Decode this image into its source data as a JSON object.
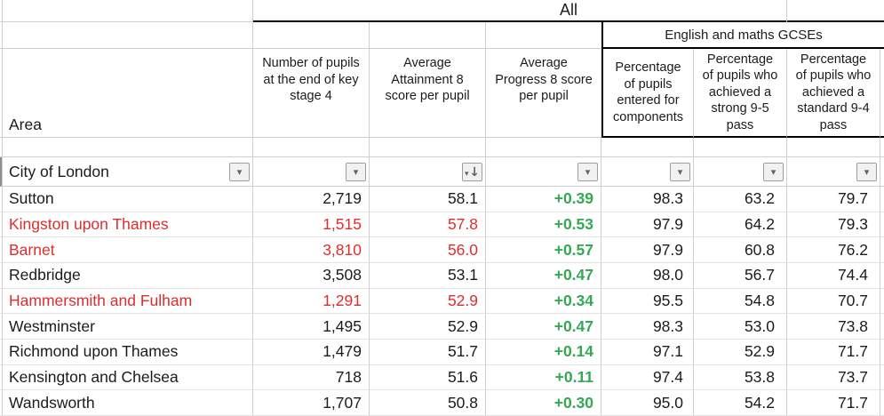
{
  "sheet": {
    "group_header": "All",
    "gcse_header": "English and maths GCSEs",
    "area_label": "Area"
  },
  "columns": {
    "pupils_label": "Number of pupils\nat the end of key\nstage 4",
    "attainment8_label": "Average\nAttainment 8\nscore per pupil",
    "progress8_label": "Average\nProgress 8 score\nper pupil",
    "entered_label": "Percentage\nof pupils\nentered for\ncomponents",
    "strong_label": "Percentage\nof pupils who\nachieved a\nstrong 9-5\npass",
    "standard_label": "Percentage\nof pupils who\nachieved a\nstandard 9-4\npass"
  },
  "filter_row": {
    "area_value": "City of London"
  },
  "icons": {
    "filter_dropdown": "▾",
    "sort_descending": "↓"
  },
  "colors": {
    "red": "#e12c2c",
    "green": "#34a853",
    "grid": "#cfcfcf",
    "grid_light": "#e4e4e4",
    "black_border": "#000000"
  },
  "rows": [
    {
      "area": "Sutton",
      "pupils": "2,719",
      "attainment8": "58.1",
      "progress8": "+0.39",
      "entered": "98.3",
      "strong_pass": "63.2",
      "standard_pass": "79.7",
      "highlight": "default"
    },
    {
      "area": "Kingston upon Thames",
      "pupils": "1,515",
      "attainment8": "57.8",
      "progress8": "+0.53",
      "entered": "97.9",
      "strong_pass": "64.2",
      "standard_pass": "79.3",
      "highlight": "red"
    },
    {
      "area": "Barnet",
      "pupils": "3,810",
      "attainment8": "56.0",
      "progress8": "+0.57",
      "entered": "97.9",
      "strong_pass": "60.8",
      "standard_pass": "76.2",
      "highlight": "red"
    },
    {
      "area": "Redbridge",
      "pupils": "3,508",
      "attainment8": "53.1",
      "progress8": "+0.47",
      "entered": "98.0",
      "strong_pass": "56.7",
      "standard_pass": "74.4",
      "highlight": "default"
    },
    {
      "area": "Hammersmith and Fulham",
      "pupils": "1,291",
      "attainment8": "52.9",
      "progress8": "+0.34",
      "entered": "95.5",
      "strong_pass": "54.8",
      "standard_pass": "70.7",
      "highlight": "red"
    },
    {
      "area": "Westminster",
      "pupils": "1,495",
      "attainment8": "52.9",
      "progress8": "+0.47",
      "entered": "98.3",
      "strong_pass": "53.0",
      "standard_pass": "73.8",
      "highlight": "default"
    },
    {
      "area": "Richmond upon Thames",
      "pupils": "1,479",
      "attainment8": "51.7",
      "progress8": "+0.14",
      "entered": "97.1",
      "strong_pass": "52.9",
      "standard_pass": "71.7",
      "highlight": "default"
    },
    {
      "area": "Kensington and Chelsea",
      "pupils": "718",
      "attainment8": "51.6",
      "progress8": "+0.11",
      "entered": "97.4",
      "strong_pass": "53.8",
      "standard_pass": "73.7",
      "highlight": "default"
    },
    {
      "area": "Wandsworth",
      "pupils": "1,707",
      "attainment8": "50.8",
      "progress8": "+0.30",
      "entered": "95.0",
      "strong_pass": "54.2",
      "standard_pass": "71.7",
      "highlight": "default"
    }
  ]
}
